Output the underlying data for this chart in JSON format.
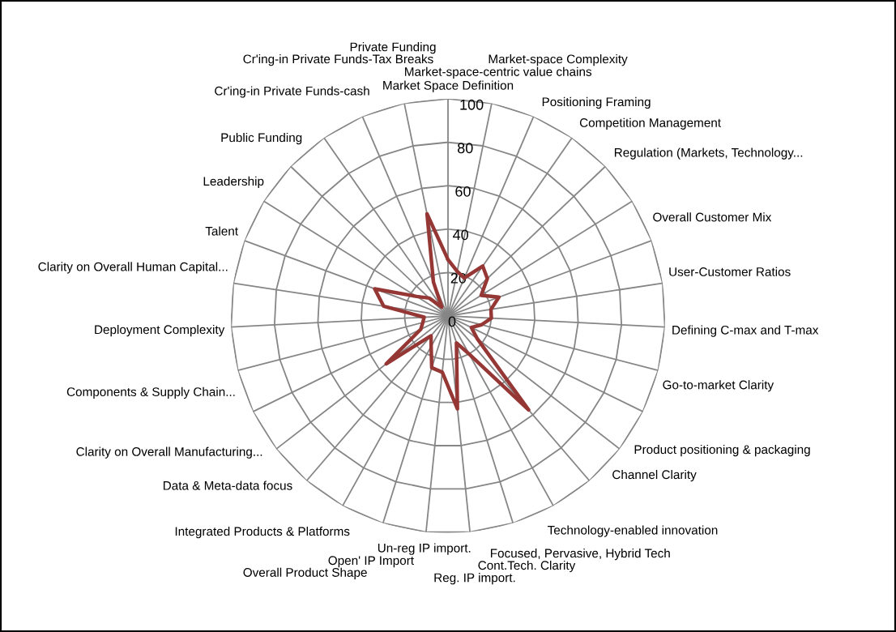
{
  "chart_data": {
    "type": "radar",
    "categories": [
      "Market Space Definition",
      "Market-space-centric value chains",
      "Market-space Complexity",
      "Positioning Framing",
      "Competition Management",
      "Regulation (Markets, Technology...",
      "Overall Customer Mix",
      "User-Customer Ratios",
      "Defining C-max and T-max",
      "Go-to-market Clarity",
      "Product positioning & packaging",
      "Channel Clarity",
      "Technology-enabled innovation",
      "Focused, Pervasive, Hybrid Tech",
      "Cont.Tech. Clarity",
      "Reg. IP import.",
      "Un-reg IP import.",
      "Open' IP Import",
      "Overall Product Shape",
      "Integrated Products & Platforms",
      "Data & Meta-data focus",
      "Clarity on Overall Manufacturing...",
      "Components & Supply Chain...",
      "Deployment Complexity",
      "Clarity on Overall Human Capital...",
      "Talent",
      "Leadership",
      "Public Funding",
      "Cr'ing-in Private Funds-cash",
      "Cr'ing-in Private Funds-Tax Breaks",
      "Private Funding"
    ],
    "series": [
      {
        "color": "#953735",
        "values": [
          26,
          21,
          19,
          28,
          25,
          18,
          25,
          20,
          20,
          16,
          12,
          17,
          57,
          20,
          13,
          43,
          26,
          25,
          16,
          12,
          36,
          14,
          12,
          11,
          30,
          36,
          17,
          12,
          5,
          17,
          48
        ]
      }
    ],
    "ylim": [
      0,
      100
    ],
    "yticks": [
      0,
      20,
      40,
      60,
      80,
      100
    ],
    "grid": true,
    "marker": "none",
    "line_style": "solid"
  }
}
